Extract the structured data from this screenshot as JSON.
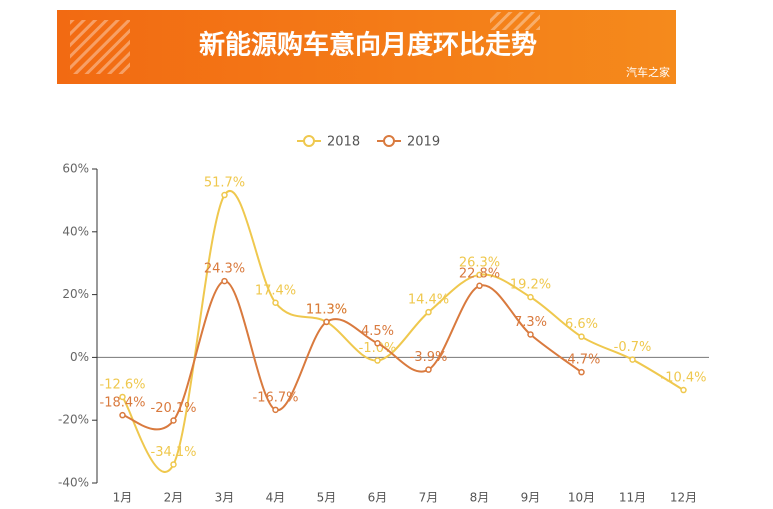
{
  "chart_data": {
    "type": "line",
    "title": "新能源购车意向月度环比走势",
    "watermark": "汽车之家",
    "categories": [
      "1月",
      "2月",
      "3月",
      "4月",
      "5月",
      "6月",
      "7月",
      "8月",
      "9月",
      "10月",
      "11月",
      "12月"
    ],
    "series": [
      {
        "name": "2018",
        "color": "#efc84e",
        "values": [
          -12.6,
          -34.1,
          51.7,
          17.4,
          11.3,
          -1.0,
          14.4,
          26.3,
          19.2,
          6.6,
          -0.7,
          -10.4
        ],
        "value_labels": [
          "-12.6%",
          "-34.1%",
          "51.7%",
          "17.4%",
          "11.3%",
          "-1.0%",
          "14.4%",
          "26.3%",
          "19.2%",
          "6.6%",
          "-0.7%",
          "-10.4%"
        ]
      },
      {
        "name": "2019",
        "color": "#d97a3e",
        "values": [
          -18.4,
          -20.1,
          24.3,
          -16.7,
          11.3,
          4.5,
          -3.9,
          22.8,
          7.3,
          -4.7,
          null,
          null
        ],
        "value_labels": [
          "-18.4%",
          "-20.1%",
          "24.3%",
          "-16.7%",
          "11.3%",
          "4.5%",
          "-3.9%",
          "22.8%",
          "7.3%",
          "-4.7%",
          null,
          null
        ]
      }
    ],
    "ylim": [
      -40,
      60
    ],
    "yticks": [
      {
        "value": -40,
        "label": "-40%"
      },
      {
        "value": -20,
        "label": "-20%"
      },
      {
        "value": 0,
        "label": "0%"
      },
      {
        "value": 20,
        "label": "20%"
      },
      {
        "value": 40,
        "label": "40%"
      },
      {
        "value": 60,
        "label": "60%"
      }
    ],
    "legend": "top"
  }
}
